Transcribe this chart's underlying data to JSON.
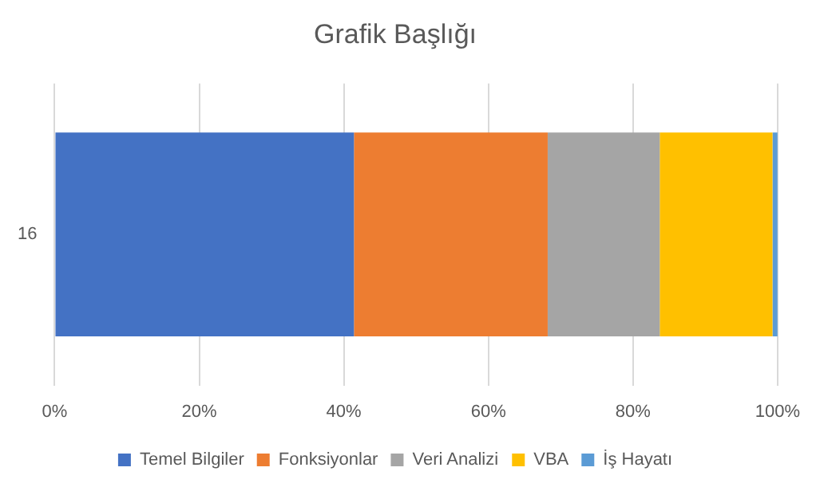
{
  "chart_data": {
    "type": "bar",
    "title": "Grafik Başlığı",
    "orientation": "horizontal",
    "stacked": true,
    "categories": [
      "16"
    ],
    "series": [
      {
        "name": "Temel Bilgiler",
        "color": "#4472c4",
        "values": [
          41.4
        ]
      },
      {
        "name": "Fonksiyonlar",
        "color": "#ed7d31",
        "values": [
          26.8
        ]
      },
      {
        "name": "Veri Analizi",
        "color": "#a5a5a5",
        "values": [
          15.5
        ]
      },
      {
        "name": "VBA",
        "color": "#ffc000",
        "values": [
          15.6
        ]
      },
      {
        "name": "İş Hayatı",
        "color": "#5b9bd5",
        "values": [
          0.7
        ]
      }
    ],
    "xlim": [
      0,
      100
    ],
    "xticks": [
      {
        "value": 0,
        "label": "0%"
      },
      {
        "value": 20,
        "label": "20%"
      },
      {
        "value": 40,
        "label": "40%"
      },
      {
        "value": 60,
        "label": "60%"
      },
      {
        "value": 80,
        "label": "80%"
      },
      {
        "value": 100,
        "label": "100%"
      }
    ],
    "grid": "x",
    "legend": "bottom"
  }
}
